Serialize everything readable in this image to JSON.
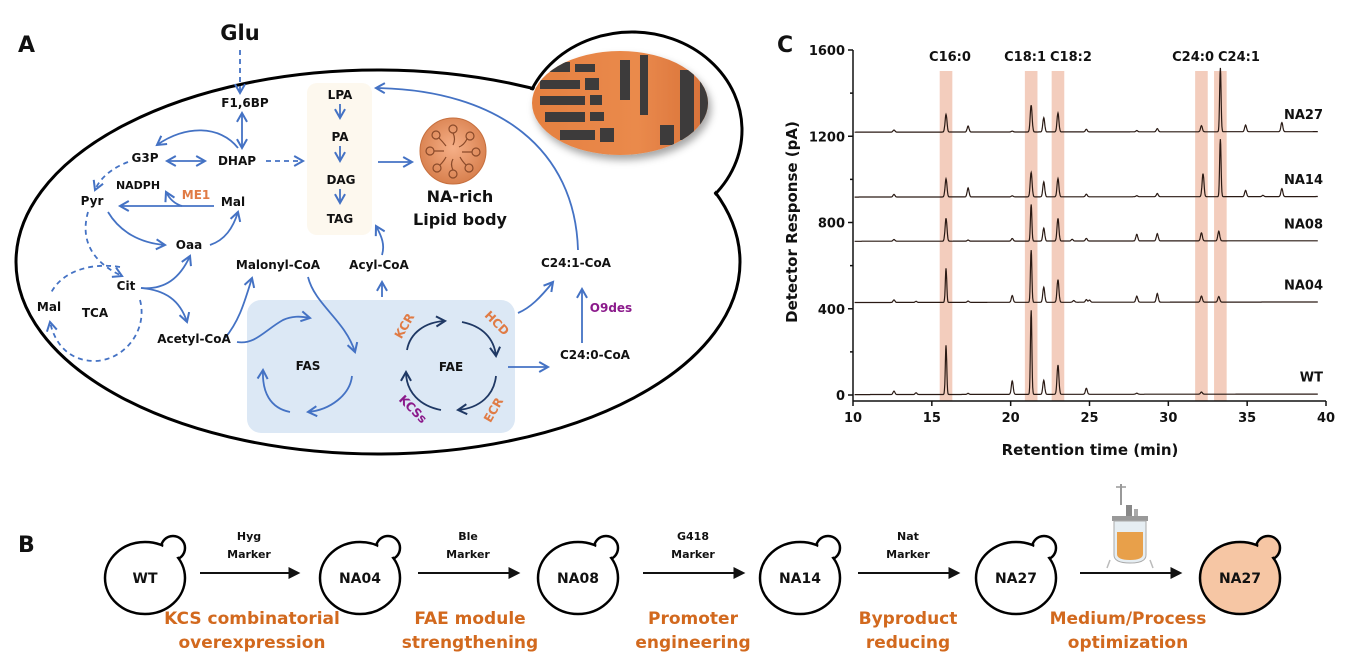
{
  "panels": {
    "a": "A",
    "b": "B",
    "c": "C"
  },
  "pathway": {
    "glu": "Glu",
    "f16bp": "F1,6BP",
    "g3p": "G3P",
    "dhap": "DHAP",
    "nadph": "NADPH",
    "me1": "ME1",
    "mal_cyto": "Mal",
    "pyr": "Pyr",
    "oaa": "Oaa",
    "cit": "Cit",
    "mal_tca": "Mal",
    "tca": "TCA",
    "acetyl_coa": "Acetyl-CoA",
    "malonyl_coa": "Malonyl-CoA",
    "acyl_coa": "Acyl-CoA",
    "lpa": "LPA",
    "pa": "PA",
    "dag": "DAG",
    "tag": "TAG",
    "lipid_body_line1": "NA-rich",
    "lipid_body_line2": "Lipid body",
    "fas": "FAS",
    "fae": "FAE",
    "kcr": "KCR",
    "hcd": "HCD",
    "kcss": "KCSs",
    "ecr": "ECR",
    "c24_0_coa": "C24:0-CoA",
    "c24_1_coa": "C24:1-CoA",
    "o9des": "O9des",
    "colors": {
      "arrow": "#4472c4",
      "fae_cycle": "#1f3864",
      "enzyme_orange": "#e07b45",
      "enzyme_purple": "#8b1a8b",
      "module_box": "#dce8f5",
      "tag_box": "#fdf8ee"
    }
  },
  "workflow": {
    "strains": [
      "WT",
      "NA04",
      "NA08",
      "NA14",
      "NA27",
      "NA27"
    ],
    "markers": [
      {
        "line1": "Hyg",
        "line2": "Marker"
      },
      {
        "line1": "Ble",
        "line2": "Marker"
      },
      {
        "line1": "G418",
        "line2": "Marker"
      },
      {
        "line1": "Nat",
        "line2": "Marker"
      }
    ],
    "steps": [
      {
        "line1": "KCS combinatorial",
        "line2": "overexpression"
      },
      {
        "line1": "FAE module",
        "line2": "strengthening"
      },
      {
        "line1": "Promoter",
        "line2": "engineering"
      },
      {
        "line1": "Byproduct",
        "line2": "reducing"
      },
      {
        "line1": "Medium/Process",
        "line2": "optimization"
      }
    ],
    "final_strain_color": "#f6c6a4",
    "step_color": "#d2691e"
  },
  "chart_data": {
    "type": "line",
    "xlabel": "Retention time (min)",
    "ylabel": "Detector Response (pA)",
    "xlim": [
      10,
      40
    ],
    "ylim": [
      0,
      1600
    ],
    "xticks": [
      10,
      15,
      20,
      25,
      30,
      35,
      40
    ],
    "yticks": [
      0,
      400,
      800,
      1200,
      1600
    ],
    "grid": false,
    "highlight_bands": [
      {
        "label": "C16:0",
        "range": [
          15.5,
          16.3
        ]
      },
      {
        "label": "C18:1",
        "range": [
          20.9,
          21.7
        ]
      },
      {
        "label": "C18:2",
        "range": [
          22.6,
          23.4
        ]
      },
      {
        "label": "C24:0",
        "range": [
          31.7,
          32.5
        ]
      },
      {
        "label": "C24:1",
        "range": [
          32.9,
          33.7
        ]
      }
    ],
    "series": [
      {
        "name": "WT",
        "baseline": 2,
        "peaks": [
          [
            12.6,
            16
          ],
          [
            14.0,
            8
          ],
          [
            15.9,
            228
          ],
          [
            17.3,
            5
          ],
          [
            20.1,
            62
          ],
          [
            21.3,
            390
          ],
          [
            22.1,
            65
          ],
          [
            23.0,
            136
          ],
          [
            24.8,
            28
          ],
          [
            28.0,
            5
          ],
          [
            32.1,
            10
          ]
        ]
      },
      {
        "name": "NA04",
        "baseline": 429,
        "peaks": [
          [
            12.6,
            12
          ],
          [
            14.0,
            5
          ],
          [
            15.9,
            158
          ],
          [
            17.3,
            6
          ],
          [
            20.1,
            31
          ],
          [
            21.3,
            242
          ],
          [
            22.1,
            70
          ],
          [
            23.0,
            105
          ],
          [
            24.0,
            8
          ],
          [
            24.8,
            12
          ],
          [
            25.0,
            10
          ],
          [
            28.0,
            28
          ],
          [
            29.3,
            40
          ],
          [
            32.1,
            28
          ],
          [
            33.2,
            26
          ]
        ]
      },
      {
        "name": "NA08",
        "baseline": 713,
        "peaks": [
          [
            12.6,
            8
          ],
          [
            15.9,
            106
          ],
          [
            17.3,
            5
          ],
          [
            20.1,
            12
          ],
          [
            21.3,
            170
          ],
          [
            22.1,
            60
          ],
          [
            23.0,
            105
          ],
          [
            23.9,
            8
          ],
          [
            24.8,
            12
          ],
          [
            28.0,
            31
          ],
          [
            29.3,
            34
          ],
          [
            32.1,
            37
          ],
          [
            33.2,
            45
          ]
        ]
      },
      {
        "name": "NA14",
        "baseline": 918,
        "peaks": [
          [
            12.6,
            12
          ],
          [
            15.9,
            84
          ],
          [
            17.3,
            42
          ],
          [
            20.1,
            5
          ],
          [
            21.3,
            113
          ],
          [
            22.1,
            70
          ],
          [
            23.0,
            85
          ],
          [
            24.8,
            12
          ],
          [
            28.0,
            5
          ],
          [
            29.3,
            15
          ],
          [
            32.2,
            107
          ],
          [
            33.3,
            267
          ],
          [
            34.9,
            29
          ],
          [
            36.0,
            6
          ],
          [
            37.2,
            37
          ]
        ]
      },
      {
        "name": "NA27",
        "baseline": 1219,
        "peaks": [
          [
            12.6,
            10
          ],
          [
            15.9,
            82
          ],
          [
            17.3,
            28
          ],
          [
            20.1,
            4
          ],
          [
            21.3,
            124
          ],
          [
            22.1,
            66
          ],
          [
            23.0,
            88
          ],
          [
            24.8,
            12
          ],
          [
            28.0,
            6
          ],
          [
            29.3,
            15
          ],
          [
            32.1,
            28
          ],
          [
            33.3,
            296
          ],
          [
            34.9,
            31
          ],
          [
            37.2,
            42
          ]
        ]
      }
    ],
    "colors": {
      "trace": "#2a1a14",
      "band": "#f3cdbd"
    }
  }
}
